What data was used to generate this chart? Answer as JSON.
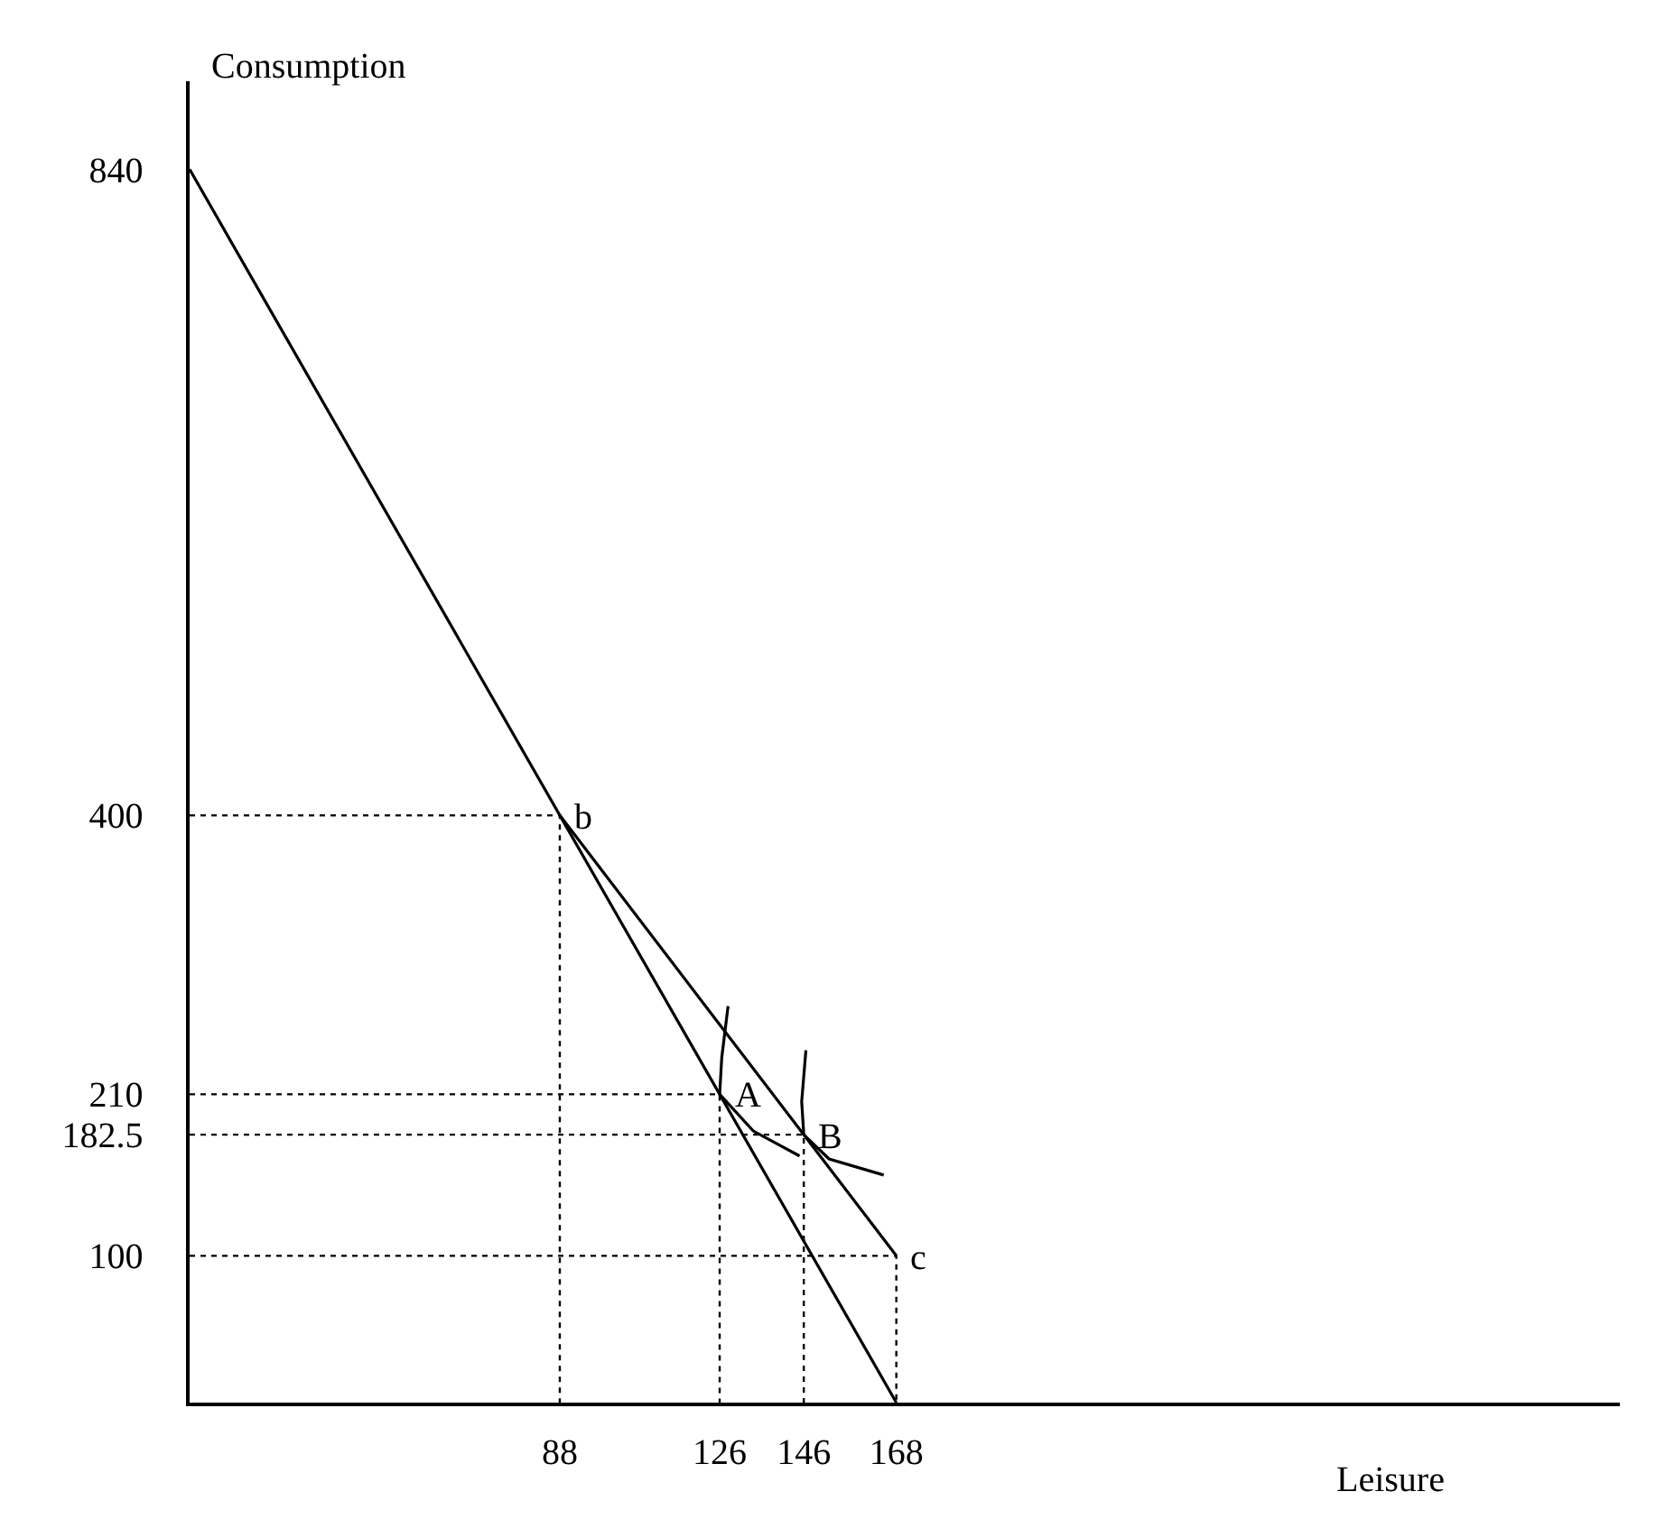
{
  "chart_data": {
    "type": "line",
    "xlabel": "Leisure",
    "ylabel": "Consumption",
    "xlim": [
      0,
      340
    ],
    "ylim": [
      0,
      900
    ],
    "xticks": [
      88,
      126,
      146,
      168
    ],
    "yticks": [
      100,
      182.5,
      210,
      400,
      840
    ],
    "grid": false,
    "marker": "none",
    "series": [
      {
        "color": "#000000",
        "line_style": "solid",
        "x": [
          0,
          168
        ],
        "values": [
          840,
          0
        ]
      },
      {
        "color": "#000000",
        "line_style": "solid",
        "x": [
          88,
          168
        ],
        "values": [
          400,
          100
        ]
      },
      {
        "color": "#000000",
        "line_style": "solid",
        "x": [
          128,
          126.5,
          126,
          134,
          145
        ],
        "values": [
          270,
          235,
          210,
          185,
          168
        ]
      },
      {
        "color": "#000000",
        "line_style": "solid",
        "x": [
          146.5,
          145.5,
          146,
          152,
          165
        ],
        "values": [
          240,
          205,
          182.5,
          166,
          155
        ]
      },
      {
        "color": "#000000",
        "line_style": "dotted",
        "x": [
          0,
          88,
          88
        ],
        "values": [
          400,
          400,
          0
        ]
      },
      {
        "color": "#000000",
        "line_style": "dotted",
        "x": [
          0,
          126,
          126
        ],
        "values": [
          210,
          210,
          0
        ]
      },
      {
        "color": "#000000",
        "line_style": "dotted",
        "x": [
          0,
          146,
          146
        ],
        "values": [
          182.5,
          182.5,
          0
        ]
      },
      {
        "color": "#000000",
        "line_style": "dotted",
        "x": [
          0,
          168,
          168
        ],
        "values": [
          100,
          100,
          0
        ]
      }
    ],
    "annotations": [
      {
        "text": "b",
        "x": 88,
        "y": 400
      },
      {
        "text": "A",
        "x": 126,
        "y": 210
      },
      {
        "text": "B",
        "x": 146,
        "y": 182.5
      },
      {
        "text": "c",
        "x": 168,
        "y": 100
      }
    ]
  }
}
